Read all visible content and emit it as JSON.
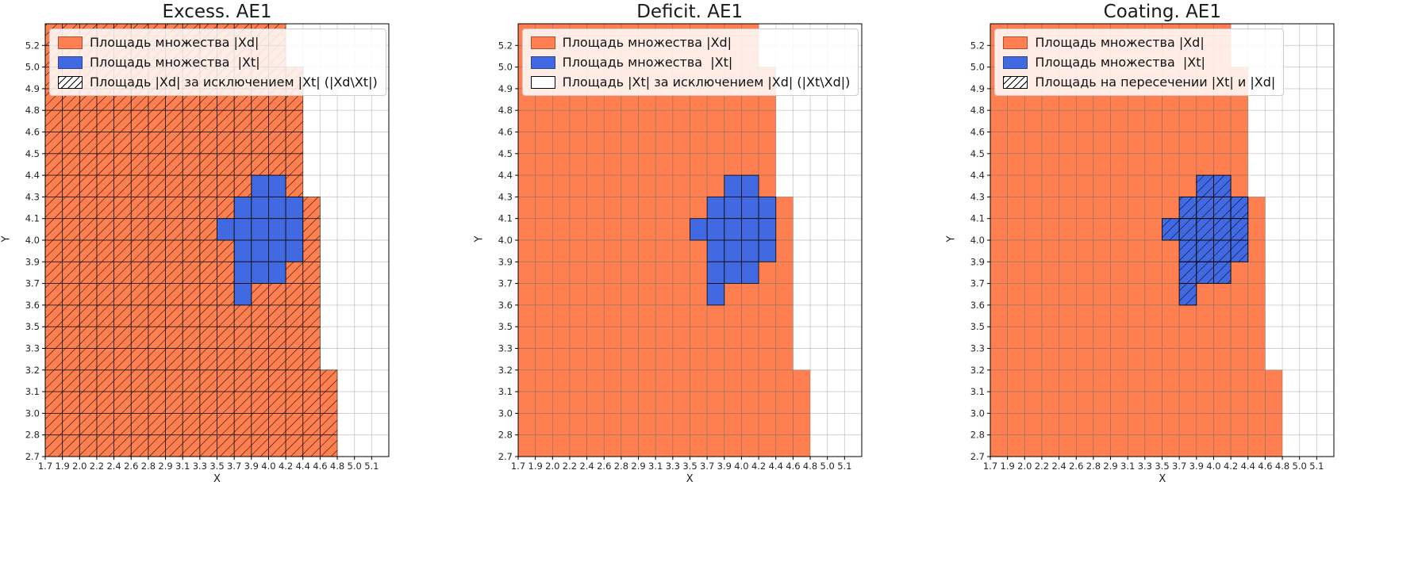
{
  "chart_data": [
    {
      "type": "heatmap",
      "title": "Excess. AE1",
      "xlabel": "X",
      "ylabel": "Y",
      "x_ticks": [
        "1.7",
        "1.9",
        "2.0",
        "2.2",
        "2.4",
        "2.6",
        "2.8",
        "2.9",
        "3.1",
        "3.3",
        "3.5",
        "3.7",
        "3.9",
        "4.0",
        "4.2",
        "4.4",
        "4.6",
        "4.8",
        "5.0",
        "5.1"
      ],
      "y_ticks": [
        "5.2",
        "5.0",
        "4.9",
        "4.8",
        "4.6",
        "4.5",
        "4.4",
        "4.3",
        "4.1",
        "4.0",
        "3.9",
        "3.7",
        "3.6",
        "3.5",
        "3.3",
        "3.2",
        "3.1",
        "3.0",
        "2.8",
        "2.7"
      ],
      "colors": {
        "set_xd_orange": "#FF7F50",
        "set_xt_blue": "#4169E1",
        "grid": "#8a8a8a",
        "hatch": "#000000"
      },
      "cell_codes": {
        "O": "cell in set |Xd| (orange)",
        "B": "cell in set |Xt| (blue)",
        ".": "empty cell"
      },
      "hatch_on": "O",
      "grid_rows": [
        "OOOOOOOOOOOOOO......",
        "OOOOOOOOOOOOOO......",
        "OOOOOOOOOOOOOOO.....",
        "OOOOOOOOOOOOOOO.....",
        "OOOOOOOOOOOOOOO.....",
        "OOOOOOOOOOOOOOO.....",
        "OOOOOOOOOOOOOOO.....",
        "OOOOOOOOOOOOBBO.....",
        "OOOOOOOOOOOBBBBO....",
        "OOOOOOOOOOBBBBBO....",
        "OOOOOOOOOOOBBBBO....",
        "OOOOOOOOOOOBBBOO....",
        "OOOOOOOOOOOBOOOO....",
        "OOOOOOOOOOOOOOOO....",
        "OOOOOOOOOOOOOOOO....",
        "OOOOOOOOOOOOOOOO....",
        "OOOOOOOOOOOOOOOOO...",
        "OOOOOOOOOOOOOOOOO...",
        "OOOOOOOOOOOOOOOOO...",
        "OOOOOOOOOOOOOOOOO..."
      ],
      "legend": [
        {
          "swatch": "orange",
          "label": "Площадь множества |Xd|"
        },
        {
          "swatch": "blue",
          "label": "Площадь множества  |Xt|"
        },
        {
          "swatch": "hatch",
          "label": "Площадь |Xd| за исключением |Xt| (|Xd\\Xt|)"
        }
      ]
    },
    {
      "type": "heatmap",
      "title": "Deficit. AE1",
      "xlabel": "X",
      "ylabel": "Y",
      "x_ticks": [
        "1.7",
        "1.9",
        "2.0",
        "2.2",
        "2.4",
        "2.6",
        "2.8",
        "2.9",
        "3.1",
        "3.3",
        "3.5",
        "3.7",
        "3.9",
        "4.0",
        "4.2",
        "4.4",
        "4.6",
        "4.8",
        "5.0",
        "5.1"
      ],
      "y_ticks": [
        "5.2",
        "5.0",
        "4.9",
        "4.8",
        "4.6",
        "4.5",
        "4.4",
        "4.3",
        "4.1",
        "4.0",
        "3.9",
        "3.7",
        "3.6",
        "3.5",
        "3.3",
        "3.2",
        "3.1",
        "3.0",
        "2.8",
        "2.7"
      ],
      "colors": {
        "set_xd_orange": "#FF7F50",
        "set_xt_blue": "#4169E1",
        "grid": "#8a8a8a",
        "hatch": "#000000"
      },
      "cell_codes": {
        "O": "cell in set |Xd| (orange)",
        "B": "cell in set |Xt| (blue)",
        ".": "empty cell"
      },
      "hatch_on": "none",
      "grid_rows": [
        "OOOOOOOOOOOOOO......",
        "OOOOOOOOOOOOOO......",
        "OOOOOOOOOOOOOOO.....",
        "OOOOOOOOOOOOOOO.....",
        "OOOOOOOOOOOOOOO.....",
        "OOOOOOOOOOOOOOO.....",
        "OOOOOOOOOOOOOOO.....",
        "OOOOOOOOOOOOBBO.....",
        "OOOOOOOOOOOBBBBO....",
        "OOOOOOOOOOBBBBBO....",
        "OOOOOOOOOOOBBBBO....",
        "OOOOOOOOOOOBBBOO....",
        "OOOOOOOOOOOBOOOO....",
        "OOOOOOOOOOOOOOOO....",
        "OOOOOOOOOOOOOOOO....",
        "OOOOOOOOOOOOOOOO....",
        "OOOOOOOOOOOOOOOOO...",
        "OOOOOOOOOOOOOOOOO...",
        "OOOOOOOOOOOOOOOOO...",
        "OOOOOOOOOOOOOOOOO..."
      ],
      "legend": [
        {
          "swatch": "orange",
          "label": "Площадь множества |Xd|"
        },
        {
          "swatch": "blue",
          "label": "Площадь множества  |Xt|"
        },
        {
          "swatch": "empty",
          "label": "Площадь |Xt| за исключением |Xd| (|Xt\\Xd|)"
        }
      ]
    },
    {
      "type": "heatmap",
      "title": "Coating. AE1",
      "xlabel": "X",
      "ylabel": "Y",
      "x_ticks": [
        "1.7",
        "1.9",
        "2.0",
        "2.2",
        "2.4",
        "2.6",
        "2.8",
        "2.9",
        "3.1",
        "3.3",
        "3.5",
        "3.7",
        "3.9",
        "4.0",
        "4.2",
        "4.4",
        "4.6",
        "4.8",
        "5.0",
        "5.1"
      ],
      "y_ticks": [
        "5.2",
        "5.0",
        "4.9",
        "4.8",
        "4.6",
        "4.5",
        "4.4",
        "4.3",
        "4.1",
        "4.0",
        "3.9",
        "3.7",
        "3.6",
        "3.5",
        "3.3",
        "3.2",
        "3.1",
        "3.0",
        "2.8",
        "2.7"
      ],
      "colors": {
        "set_xd_orange": "#FF7F50",
        "set_xt_blue": "#4169E1",
        "grid": "#8a8a8a",
        "hatch": "#000000"
      },
      "cell_codes": {
        "O": "cell in set |Xd| (orange)",
        "B": "cell in set |Xt| (blue)",
        ".": "empty cell"
      },
      "hatch_on": "B",
      "grid_rows": [
        "OOOOOOOOOOOOOO......",
        "OOOOOOOOOOOOOO......",
        "OOOOOOOOOOOOOOO.....",
        "OOOOOOOOOOOOOOO.....",
        "OOOOOOOOOOOOOOO.....",
        "OOOOOOOOOOOOOOO.....",
        "OOOOOOOOOOOOOOO.....",
        "OOOOOOOOOOOOBBO.....",
        "OOOOOOOOOOOBBBBO....",
        "OOOOOOOOOOBBBBBO....",
        "OOOOOOOOOOOBBBBO....",
        "OOOOOOOOOOOBBBOO....",
        "OOOOOOOOOOOBOOOO....",
        "OOOOOOOOOOOOOOOO....",
        "OOOOOOOOOOOOOOOO....",
        "OOOOOOOOOOOOOOOO....",
        "OOOOOOOOOOOOOOOOO...",
        "OOOOOOOOOOOOOOOOO...",
        "OOOOOOOOOOOOOOOOO...",
        "OOOOOOOOOOOOOOOOO..."
      ],
      "legend": [
        {
          "swatch": "orange",
          "label": "Площадь множества |Xd|"
        },
        {
          "swatch": "blue",
          "label": "Площадь множества  |Xt|"
        },
        {
          "swatch": "hatch",
          "label": "Площадь на пересечении |Xt| и |Xd|"
        }
      ]
    }
  ]
}
